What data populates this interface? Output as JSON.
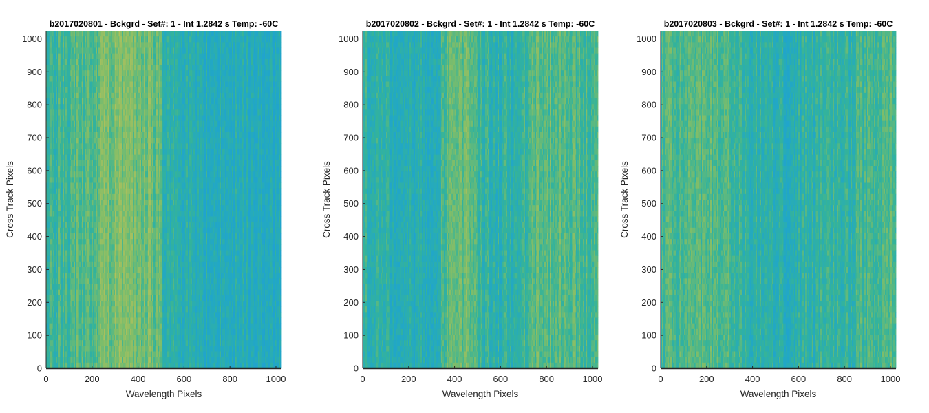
{
  "chart_data": [
    {
      "type": "heatmap",
      "title": "b2017020801 - Bckgrd - Set#: 1 - Int 1.2842 s Temp: -60C",
      "xlabel": "Wavelength Pixels",
      "ylabel": "Cross Track Pixels",
      "xlim": [
        0,
        1024
      ],
      "ylim": [
        0,
        1024
      ],
      "xticks": [
        0,
        200,
        400,
        600,
        800,
        1000
      ],
      "yticks": [
        0,
        100,
        200,
        300,
        400,
        500,
        600,
        700,
        800,
        900,
        1000
      ],
      "colormap": [
        "#1f9fd6",
        "#22a8c4",
        "#34b39a",
        "#7ebd6a",
        "#b5c15a"
      ],
      "column_intensity_profile": {
        "columns": [
          0,
          100,
          200,
          260,
          320,
          400,
          460,
          500,
          520,
          600,
          700,
          800,
          900,
          1024
        ],
        "values": [
          0.5,
          0.55,
          0.62,
          0.72,
          0.78,
          0.75,
          0.7,
          0.6,
          0.4,
          0.35,
          0.32,
          0.33,
          0.3,
          0.28
        ]
      }
    },
    {
      "type": "heatmap",
      "title": "b2017020802 - Bckgrd - Set#: 1 - Int 1.2842 s Temp: -60C",
      "xlabel": "Wavelength Pixels",
      "ylabel": "Cross Track Pixels",
      "xlim": [
        0,
        1024
      ],
      "ylim": [
        0,
        1024
      ],
      "xticks": [
        0,
        200,
        400,
        600,
        800,
        1000
      ],
      "yticks": [
        0,
        100,
        200,
        300,
        400,
        500,
        600,
        700,
        800,
        900,
        1000
      ],
      "colormap": [
        "#1f9fd6",
        "#22a8c4",
        "#34b39a",
        "#7ebd6a",
        "#b5c15a"
      ],
      "column_intensity_profile": {
        "columns": [
          0,
          100,
          200,
          300,
          340,
          400,
          460,
          520,
          600,
          700,
          760,
          850,
          950,
          1024
        ],
        "values": [
          0.45,
          0.4,
          0.32,
          0.33,
          0.5,
          0.7,
          0.68,
          0.45,
          0.42,
          0.48,
          0.62,
          0.66,
          0.58,
          0.52
        ]
      }
    },
    {
      "type": "heatmap",
      "title": "b2017020803 - Bckgrd - Set#: 1 - Int 1.2842 s Temp: -60C",
      "xlabel": "Wavelength Pixels",
      "ylabel": "Cross Track Pixels",
      "xlim": [
        0,
        1024
      ],
      "ylim": [
        0,
        1024
      ],
      "xticks": [
        0,
        200,
        400,
        600,
        800,
        1000
      ],
      "yticks": [
        0,
        100,
        200,
        300,
        400,
        500,
        600,
        700,
        800,
        900,
        1000
      ],
      "colormap": [
        "#1f9fd6",
        "#22a8c4",
        "#34b39a",
        "#7ebd6a",
        "#b5c15a"
      ],
      "column_intensity_profile": {
        "columns": [
          0,
          100,
          200,
          280,
          350,
          450,
          550,
          650,
          750,
          850,
          950,
          1024
        ],
        "values": [
          0.55,
          0.6,
          0.62,
          0.58,
          0.48,
          0.42,
          0.36,
          0.42,
          0.48,
          0.5,
          0.55,
          0.58
        ]
      }
    }
  ]
}
